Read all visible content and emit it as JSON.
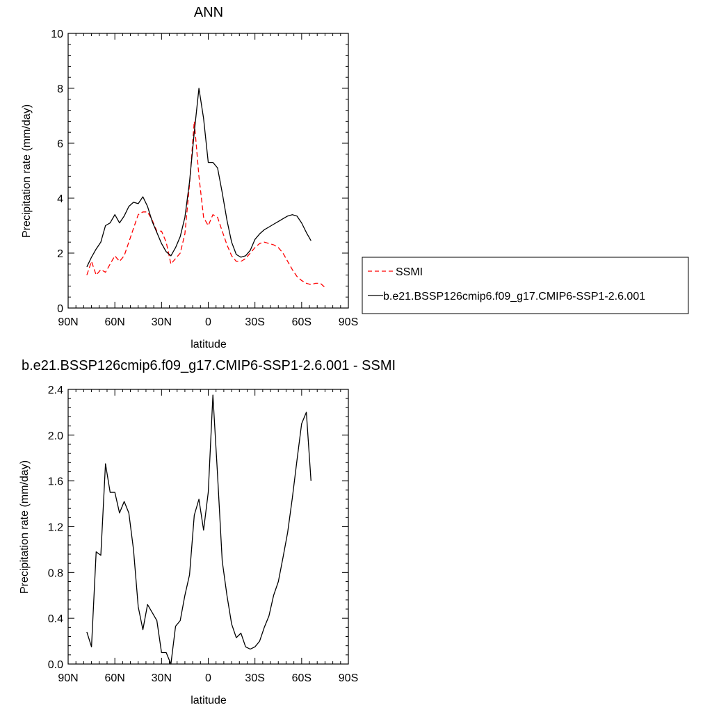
{
  "chart_data": [
    {
      "type": "line",
      "title": "ANN",
      "xlabel": "latitude",
      "ylabel": "Precipitation rate (mm/day)",
      "xlim": [
        90,
        -90
      ],
      "ylim": [
        0,
        10
      ],
      "xticks": [
        90,
        60,
        30,
        0,
        -30,
        -60,
        -90
      ],
      "xtick_labels": [
        "90N",
        "60N",
        "30N",
        "0",
        "30S",
        "60S",
        "90S"
      ],
      "yticks": [
        0,
        2,
        4,
        6,
        8,
        10
      ],
      "ytick_labels": [
        "0",
        "2",
        "4",
        "6",
        "8",
        "10"
      ],
      "legend_position": "right",
      "series": [
        {
          "name": "SSMI",
          "color": "#ff0000",
          "dash": "dashed",
          "x": [
            78,
            75,
            72,
            69,
            66,
            63,
            60,
            57,
            54,
            51,
            48,
            45,
            42,
            39,
            36,
            33,
            30,
            27,
            24,
            21,
            18,
            15,
            12,
            9,
            6,
            3,
            0,
            -3,
            -6,
            -9,
            -12,
            -15,
            -18,
            -21,
            -24,
            -27,
            -30,
            -33,
            -36,
            -39,
            -42,
            -45,
            -48,
            -51,
            -54,
            -57,
            -60,
            -63,
            -66,
            -69,
            -72,
            -75
          ],
          "y": [
            1.2,
            1.7,
            1.2,
            1.4,
            1.3,
            1.6,
            1.9,
            1.7,
            1.9,
            2.4,
            2.9,
            3.4,
            3.5,
            3.5,
            3.2,
            2.8,
            2.8,
            2.4,
            1.6,
            1.8,
            2.0,
            2.7,
            4.5,
            6.8,
            4.8,
            3.3,
            3.0,
            3.4,
            3.3,
            2.8,
            2.3,
            1.9,
            1.7,
            1.7,
            1.8,
            2.0,
            2.2,
            2.35,
            2.4,
            2.35,
            2.3,
            2.2,
            2.0,
            1.7,
            1.4,
            1.15,
            1.0,
            0.9,
            0.85,
            0.9,
            0.9,
            0.75
          ]
        },
        {
          "name": "b.e21.BSSP126cmip6.f09_g17.CMIP6-SSP1-2.6.001",
          "color": "#000000",
          "dash": "solid",
          "x": [
            78,
            75,
            72,
            69,
            66,
            63,
            60,
            57,
            54,
            51,
            48,
            45,
            42,
            39,
            36,
            33,
            30,
            27,
            24,
            21,
            18,
            15,
            12,
            9,
            6,
            3,
            0,
            -3,
            -6,
            -9,
            -12,
            -15,
            -18,
            -21,
            -24,
            -27,
            -30,
            -33,
            -36,
            -39,
            -42,
            -45,
            -48,
            -51,
            -54,
            -57,
            -60,
            -63,
            -66
          ],
          "y": [
            1.5,
            1.85,
            2.15,
            2.4,
            3.0,
            3.1,
            3.4,
            3.1,
            3.35,
            3.7,
            3.85,
            3.8,
            4.05,
            3.7,
            3.15,
            2.75,
            2.35,
            2.05,
            1.9,
            2.2,
            2.6,
            3.3,
            4.6,
            6.4,
            8.0,
            6.9,
            5.3,
            5.3,
            5.1,
            4.2,
            3.2,
            2.4,
            1.95,
            1.85,
            1.9,
            2.1,
            2.5,
            2.7,
            2.85,
            2.95,
            3.05,
            3.15,
            3.25,
            3.35,
            3.4,
            3.35,
            3.1,
            2.75,
            2.45
          ]
        }
      ]
    },
    {
      "type": "line",
      "title": "b.e21.BSSP126cmip6.f09_g17.CMIP6-SSP1-2.6.001 - SSMI",
      "xlabel": "latitude",
      "ylabel": "Precipitation rate (mm/day)",
      "xlim": [
        90,
        -90
      ],
      "ylim": [
        0,
        2.4
      ],
      "xticks": [
        90,
        60,
        30,
        0,
        -30,
        -60,
        -90
      ],
      "xtick_labels": [
        "90N",
        "60N",
        "30N",
        "0",
        "30S",
        "60S",
        "90S"
      ],
      "yticks": [
        0,
        0.4,
        0.8,
        1.2,
        1.6,
        2.0,
        2.4
      ],
      "ytick_labels": [
        "0.0",
        "0.4",
        "0.8",
        "1.2",
        "1.6",
        "2.0",
        "2.4"
      ],
      "series": [
        {
          "name": "",
          "color": "#000000",
          "dash": "solid",
          "x": [
            78,
            75,
            72,
            69,
            66,
            63,
            60,
            57,
            54,
            51,
            48,
            45,
            42,
            39,
            36,
            33,
            30,
            27,
            24,
            21,
            18,
            15,
            12,
            9,
            6,
            3,
            0,
            -3,
            -6,
            -9,
            -12,
            -15,
            -18,
            -21,
            -24,
            -27,
            -30,
            -33,
            -36,
            -39,
            -42,
            -45,
            -48,
            -51,
            -54,
            -57,
            -60,
            -63,
            -66
          ],
          "y": [
            0.28,
            0.15,
            0.98,
            0.95,
            1.75,
            1.5,
            1.5,
            1.32,
            1.42,
            1.32,
            1.0,
            0.5,
            0.3,
            0.52,
            0.45,
            0.38,
            0.1,
            0.1,
            0.0,
            0.33,
            0.38,
            0.6,
            0.78,
            1.3,
            1.44,
            1.17,
            1.5,
            2.35,
            1.65,
            0.9,
            0.6,
            0.35,
            0.23,
            0.27,
            0.15,
            0.13,
            0.15,
            0.2,
            0.32,
            0.42,
            0.6,
            0.72,
            0.93,
            1.15,
            1.45,
            1.78,
            2.1,
            2.2,
            1.6
          ]
        }
      ]
    }
  ]
}
